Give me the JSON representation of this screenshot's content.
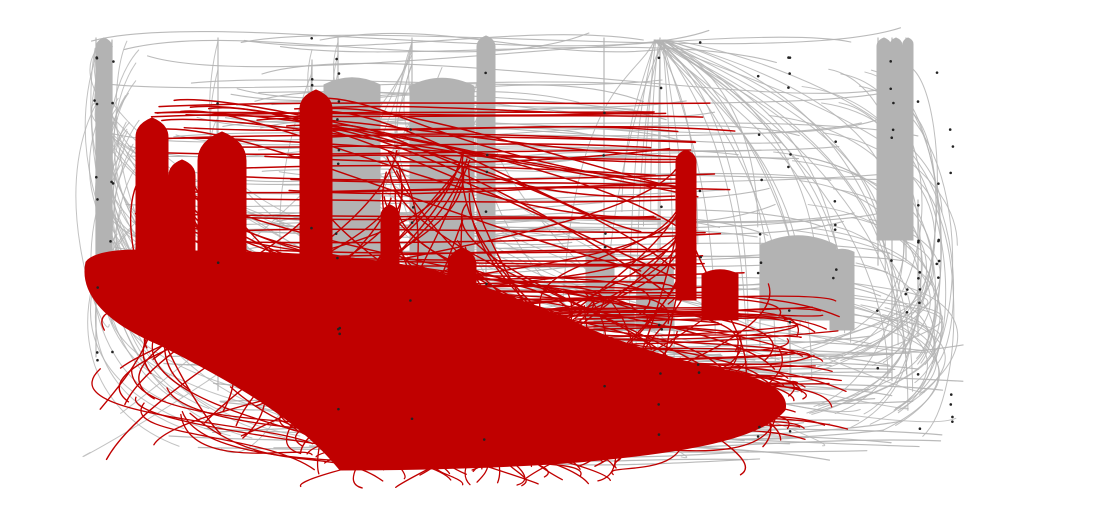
{
  "graph": {
    "edge_colors": {
      "background": "#b3b3b3",
      "highlighted": "#c00000",
      "node": "#222222"
    },
    "background_color": "#ffffff"
  }
}
